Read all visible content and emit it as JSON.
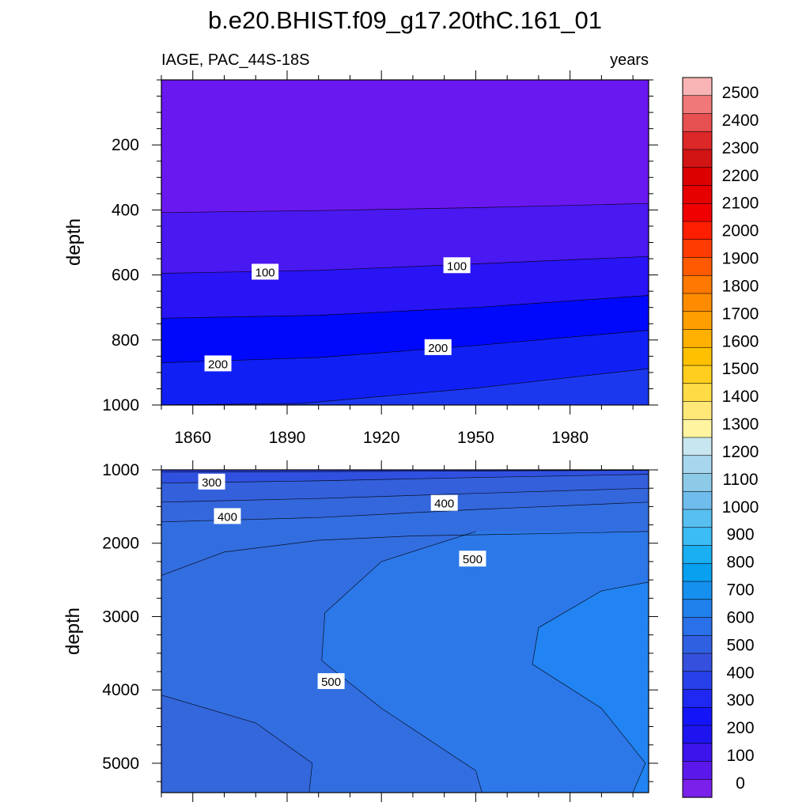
{
  "title": "b.e20.BHIST.f09_g17.20thC.161_01",
  "subtitle_left": "IAGE, PAC_44S-18S",
  "subtitle_right": "years",
  "colorbar": {
    "labels": [
      "2500",
      "2400",
      "2300",
      "2200",
      "2100",
      "2000",
      "1900",
      "1800",
      "1700",
      "1600",
      "1500",
      "1400",
      "1300",
      "1200",
      "1100",
      "1000",
      "900",
      "800",
      "700",
      "600",
      "500",
      "400",
      "300",
      "200",
      "100",
      "0"
    ],
    "colors": [
      "#f8b4b4",
      "#f07878",
      "#e65050",
      "#dc2828",
      "#d21414",
      "#dc0000",
      "#e60000",
      "#f00000",
      "#ff1e00",
      "#ff3c00",
      "#ff5a00",
      "#ff7800",
      "#ff8c00",
      "#ff9e00",
      "#ffb000",
      "#ffc000",
      "#ffce1e",
      "#ffdc46",
      "#ffe878",
      "#fff4a0",
      "#c8e6f0",
      "#a8d6ee",
      "#8ccae8",
      "#70bcec",
      "#58c0f0",
      "#3cbcf4",
      "#1aaef2",
      "#0aa0f0",
      "#1690ee",
      "#2080ec",
      "#2a70e8",
      "#3060e2",
      "#3550dc",
      "#2840e8",
      "#1e28f0",
      "#1414f8",
      "#1e14f0",
      "#3c14ec",
      "#5a18ea",
      "#7a20ea"
    ]
  },
  "chart_data": [
    {
      "type": "contour",
      "panel": "upper",
      "xlabel": "",
      "ylabel": "depth",
      "xlim": [
        1850,
        2005
      ],
      "ylim": [
        0,
        1000
      ],
      "y_inverted": true,
      "xticks": [
        1860,
        1890,
        1920,
        1950,
        1980
      ],
      "yticks": [
        200,
        400,
        600,
        800,
        1000
      ],
      "contour_lines": [
        {
          "x": [
            1850,
            1900,
            1950,
            2005
          ],
          "y": [
            408,
            402,
            393,
            380
          ]
        },
        {
          "x": [
            1850,
            1900,
            1950,
            2005
          ],
          "y": [
            595,
            586,
            566,
            543
          ]
        },
        {
          "x": [
            1850,
            1900,
            1950,
            2005
          ],
          "y": [
            733,
            724,
            700,
            663
          ]
        },
        {
          "x": [
            1850,
            1900,
            1950,
            2005
          ],
          "y": [
            870,
            854,
            817,
            770
          ]
        },
        {
          "x": [
            1850,
            1895,
            1950,
            2005
          ],
          "y": [
            1000,
            995,
            948,
            888
          ]
        }
      ],
      "bands": [
        {
          "level": "0-50",
          "color": "#6a18f0"
        },
        {
          "level": "50-100",
          "color": "#4a18f0"
        },
        {
          "level": "100-150",
          "color": "#2814f4"
        },
        {
          "level": "150-200",
          "color": "#0008fc"
        },
        {
          "level": "200-250",
          "color": "#1020f4"
        },
        {
          "level": "250-300",
          "color": "#1c38ee"
        }
      ],
      "contour_labels": [
        {
          "text": "100",
          "x": 1883,
          "y": 590
        },
        {
          "text": "100",
          "x": 1944,
          "y": 570
        },
        {
          "text": "200",
          "x": 1868,
          "y": 872
        },
        {
          "text": "200",
          "x": 1938,
          "y": 822
        }
      ]
    },
    {
      "type": "contour",
      "panel": "lower",
      "xlabel": "",
      "ylabel": "depth",
      "xlim": [
        1850,
        2005
      ],
      "ylim": [
        1000,
        5400
      ],
      "y_inverted": true,
      "xticks": [
        1860,
        1890,
        1920,
        1950,
        1980
      ],
      "yticks": [
        1000,
        2000,
        3000,
        4000,
        5000
      ],
      "contour_lines": [
        {
          "x": [
            1850,
            1920,
            2005
          ],
          "y": [
            1030,
            1020,
            1005
          ]
        },
        {
          "x": [
            1850,
            1900,
            1950,
            2005
          ],
          "y": [
            1180,
            1150,
            1105,
            1060
          ]
        },
        {
          "x": [
            1850,
            1900,
            1950,
            2005
          ],
          "y": [
            1440,
            1390,
            1320,
            1250
          ]
        },
        {
          "x": [
            1850,
            1900,
            1950,
            2005
          ],
          "y": [
            1710,
            1650,
            1540,
            1440
          ]
        },
        {
          "x": [
            1850,
            1870,
            1900,
            1930,
            1970,
            2005
          ],
          "y": [
            2440,
            2120,
            1960,
            1900,
            1870,
            1840
          ]
        },
        {
          "x": [
            1950,
            1920,
            1902,
            1901,
            1920,
            1950,
            1952
          ],
          "y": [
            1840,
            2250,
            2950,
            3600,
            4250,
            5100,
            5400
          ]
        },
        {
          "x": [
            2005,
            1990,
            1970,
            1968,
            1990,
            2004,
            2000
          ],
          "y": [
            2530,
            2650,
            3150,
            3650,
            4250,
            5000,
            5400
          ]
        },
        {
          "x": [
            1850,
            1880,
            1898,
            1897
          ],
          "y": [
            4070,
            4450,
            5000,
            5400
          ]
        }
      ],
      "bands": [
        {
          "level": "250-300",
          "color": "#2840e8"
        },
        {
          "level": "300-350",
          "color": "#3050e0"
        },
        {
          "level": "350-400",
          "color": "#3460dc"
        },
        {
          "level": "400-450",
          "color": "#3466dc"
        },
        {
          "level": "450-500",
          "color": "#336ee0"
        },
        {
          "level": "500-550",
          "color": "#2c78e8"
        },
        {
          "level": "550-600",
          "color": "#2284f2"
        }
      ],
      "contour_labels": [
        {
          "text": "300",
          "x": 1866,
          "y": 1160
        },
        {
          "text": "400",
          "x": 1871,
          "y": 1630
        },
        {
          "text": "400",
          "x": 1940,
          "y": 1450
        },
        {
          "text": "500",
          "x": 1949,
          "y": 2210
        },
        {
          "text": "500",
          "x": 1904,
          "y": 3880
        }
      ]
    }
  ]
}
